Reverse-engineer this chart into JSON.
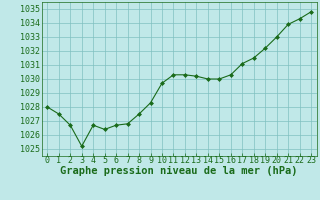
{
  "x": [
    0,
    1,
    2,
    3,
    4,
    5,
    6,
    7,
    8,
    9,
    10,
    11,
    12,
    13,
    14,
    15,
    16,
    17,
    18,
    19,
    20,
    21,
    22,
    23
  ],
  "y": [
    1028.0,
    1027.5,
    1026.7,
    1025.2,
    1026.7,
    1026.4,
    1026.7,
    1026.8,
    1027.5,
    1028.3,
    1029.7,
    1030.3,
    1030.3,
    1030.2,
    1030.0,
    1030.0,
    1030.3,
    1031.1,
    1031.5,
    1032.2,
    1033.0,
    1033.9,
    1034.3,
    1034.8
  ],
  "line_color": "#1a6b1a",
  "marker_color": "#1a6b1a",
  "bg_color": "#c0e8e8",
  "grid_color": "#80c0c0",
  "title": "Graphe pression niveau de la mer (hPa)",
  "ylim": [
    1024.5,
    1035.5
  ],
  "yticks": [
    1025,
    1026,
    1027,
    1028,
    1029,
    1030,
    1031,
    1032,
    1033,
    1034,
    1035
  ],
  "xlim": [
    -0.5,
    23.5
  ],
  "xticks": [
    0,
    1,
    2,
    3,
    4,
    5,
    6,
    7,
    8,
    9,
    10,
    11,
    12,
    13,
    14,
    15,
    16,
    17,
    18,
    19,
    20,
    21,
    22,
    23
  ],
  "title_fontsize": 7.5,
  "tick_fontsize": 6.0
}
